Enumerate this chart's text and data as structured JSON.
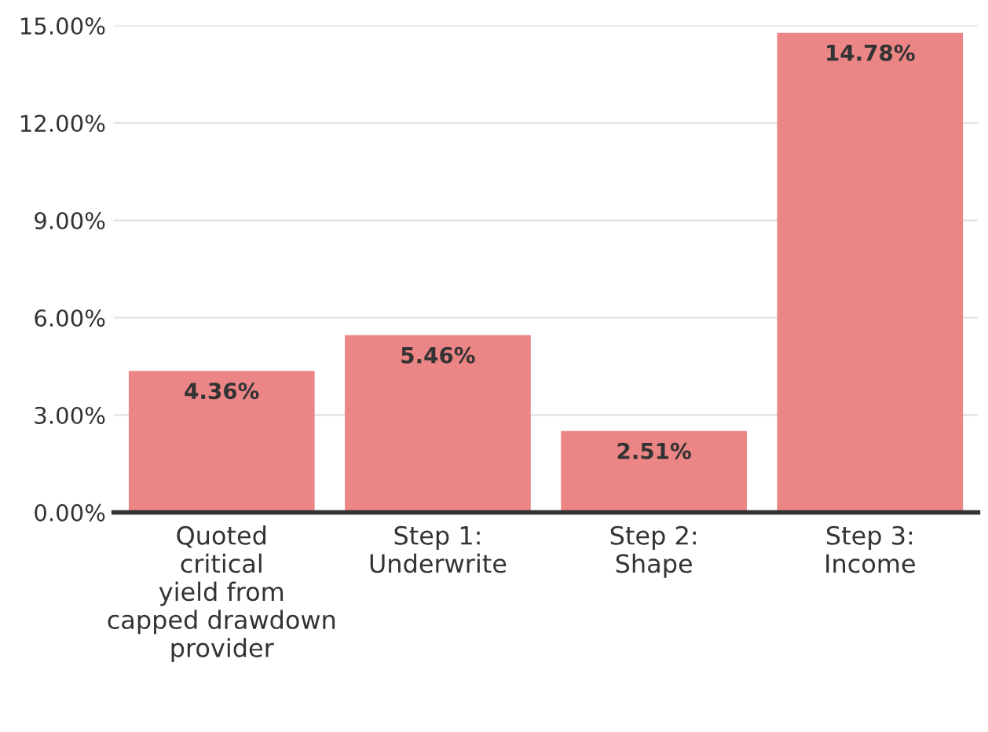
{
  "chart_data": {
    "type": "bar",
    "categories": [
      "Quoted\ncritical\nyield from\ncapped drawdown\nprovider",
      "Step 1:\nUnderwrite",
      "Step 2:\nShape",
      "Step 3:\nIncome"
    ],
    "values": [
      4.36,
      5.46,
      2.51,
      14.78
    ],
    "value_labels": [
      "4.36%",
      "5.46%",
      "2.51%",
      "14.78%"
    ],
    "color": "#ec8585",
    "ylim": [
      0,
      15
    ],
    "yticks": [
      {
        "value": 0,
        "label": "0.00%"
      },
      {
        "value": 3,
        "label": "3.00%"
      },
      {
        "value": 6,
        "label": "6.00%"
      },
      {
        "value": 9,
        "label": "9.00%"
      },
      {
        "value": 12,
        "label": "12.00%"
      },
      {
        "value": 15,
        "label": "15.00%"
      }
    ],
    "grid": "y"
  }
}
